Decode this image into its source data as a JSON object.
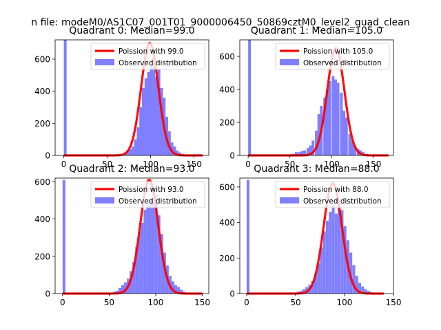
{
  "figure": {
    "suptitle": "n file: modeM0/AS1C07_001T01_9000006450_50869cztM0_level2_quad_clean"
  },
  "colors": {
    "observed": "#7f7fff",
    "poisson": "#ff0000",
    "axis": "#000000",
    "background": "#ffffff"
  },
  "chart_data": [
    {
      "type": "bar",
      "title": "Quadrant 0: Median=99.0",
      "xlim": [
        -10,
        167
      ],
      "ylim": [
        0,
        720
      ],
      "xticks": [
        0,
        50,
        100,
        150
      ],
      "xtick_labels": [
        "0",
        "50",
        "100",
        "150"
      ],
      "yticks": [
        0,
        200,
        400,
        600
      ],
      "ytick_labels": [
        "0",
        "200",
        "400",
        "600"
      ],
      "legend": {
        "position": "top-right",
        "entries": [
          "Poission with 99.0",
          "Observed distribution"
        ]
      },
      "median": 99.0,
      "bin_width": 3.2,
      "bins": [
        [
          0,
          720
        ],
        [
          57,
          2
        ],
        [
          63,
          4
        ],
        [
          66,
          8
        ],
        [
          69,
          15
        ],
        [
          72,
          28
        ],
        [
          75,
          38
        ],
        [
          78,
          55
        ],
        [
          81,
          100
        ],
        [
          84,
          175
        ],
        [
          87,
          300
        ],
        [
          90,
          420
        ],
        [
          93,
          480
        ],
        [
          96,
          520
        ],
        [
          99,
          560
        ],
        [
          102,
          610
        ],
        [
          105,
          490
        ],
        [
          108,
          540
        ],
        [
          111,
          420
        ],
        [
          114,
          360
        ],
        [
          117,
          240
        ],
        [
          120,
          150
        ],
        [
          123,
          80
        ],
        [
          126,
          55
        ],
        [
          129,
          30
        ],
        [
          132,
          18
        ],
        [
          135,
          10
        ],
        [
          138,
          5
        ]
      ],
      "poisson": {
        "lambda": 99.0,
        "peak": 700,
        "x_range": [
          0,
          160
        ]
      }
    },
    {
      "type": "bar",
      "title": "Quadrant 1: Median=105.0",
      "xlim": [
        -10,
        174
      ],
      "ylim": [
        0,
        700
      ],
      "xticks": [
        0,
        50,
        100,
        150
      ],
      "xtick_labels": [
        "0",
        "50",
        "100",
        "150"
      ],
      "yticks": [
        0,
        200,
        400,
        600
      ],
      "ytick_labels": [
        "0",
        "200",
        "400",
        "600"
      ],
      "legend": {
        "position": "top-right",
        "entries": [
          "Poission with 105.0",
          "Observed distribution"
        ]
      },
      "median": 105.0,
      "bin_width": 3.3,
      "bins": [
        [
          0,
          700
        ],
        [
          52,
          10
        ],
        [
          56,
          20
        ],
        [
          60,
          20
        ],
        [
          63,
          25
        ],
        [
          66,
          30
        ],
        [
          70,
          45
        ],
        [
          73,
          60
        ],
        [
          76,
          90
        ],
        [
          80,
          150
        ],
        [
          83,
          250
        ],
        [
          86,
          300
        ],
        [
          90,
          350
        ],
        [
          93,
          400
        ],
        [
          96,
          450
        ],
        [
          100,
          480
        ],
        [
          103,
          460
        ],
        [
          106,
          440
        ],
        [
          110,
          380
        ],
        [
          113,
          270
        ],
        [
          116,
          230
        ],
        [
          120,
          130
        ],
        [
          123,
          90
        ],
        [
          126,
          60
        ],
        [
          130,
          40
        ],
        [
          133,
          30
        ],
        [
          136,
          20
        ],
        [
          140,
          10
        ],
        [
          143,
          5
        ]
      ],
      "poisson": {
        "lambda": 105.0,
        "peak": 650,
        "x_range": [
          0,
          168
        ]
      }
    },
    {
      "type": "bar",
      "title": "Quadrant 2: Median=93.0",
      "xlim": [
        -8,
        157
      ],
      "ylim": [
        0,
        620
      ],
      "xticks": [
        0,
        50,
        100,
        150
      ],
      "xtick_labels": [
        "0",
        "50",
        "100",
        "150"
      ],
      "yticks": [
        0,
        200,
        400,
        600
      ],
      "ytick_labels": [
        "0",
        "200",
        "400",
        "600"
      ],
      "legend": {
        "position": "top-right",
        "entries": [
          "Poission with 93.0",
          "Observed distribution"
        ]
      },
      "median": 93.0,
      "bin_width": 3.0,
      "bins": [
        [
          0,
          610
        ],
        [
          51,
          5
        ],
        [
          54,
          10
        ],
        [
          57,
          15
        ],
        [
          60,
          30
        ],
        [
          63,
          45
        ],
        [
          66,
          60
        ],
        [
          69,
          80
        ],
        [
          72,
          120
        ],
        [
          75,
          170
        ],
        [
          78,
          250
        ],
        [
          81,
          330
        ],
        [
          84,
          380
        ],
        [
          87,
          450
        ],
        [
          90,
          470
        ],
        [
          93,
          510
        ],
        [
          96,
          490
        ],
        [
          99,
          530
        ],
        [
          102,
          420
        ],
        [
          105,
          320
        ],
        [
          108,
          220
        ],
        [
          111,
          150
        ],
        [
          114,
          95
        ],
        [
          117,
          65
        ],
        [
          120,
          45
        ],
        [
          123,
          35
        ],
        [
          126,
          20
        ],
        [
          129,
          10
        ],
        [
          132,
          5
        ]
      ],
      "poisson": {
        "lambda": 93.0,
        "peak": 610,
        "x_range": [
          0,
          150
        ]
      }
    },
    {
      "type": "bar",
      "title": "Quadrant 3: Median=88.0",
      "xlim": [
        -7,
        150
      ],
      "ylim": [
        0,
        650
      ],
      "xticks": [
        0,
        50,
        100,
        150
      ],
      "xtick_labels": [
        "0",
        "50",
        "100",
        "150"
      ],
      "yticks": [
        0,
        200,
        400,
        600
      ],
      "ytick_labels": [
        "0",
        "200",
        "400",
        "600"
      ],
      "legend": {
        "position": "top-right",
        "entries": [
          "Poission with 88.0",
          "Observed distribution"
        ]
      },
      "median": 88.0,
      "bin_width": 2.9,
      "bins": [
        [
          0,
          640
        ],
        [
          48,
          5
        ],
        [
          51,
          10
        ],
        [
          54,
          15
        ],
        [
          57,
          25
        ],
        [
          60,
          35
        ],
        [
          63,
          50
        ],
        [
          66,
          70
        ],
        [
          69,
          110
        ],
        [
          72,
          170
        ],
        [
          75,
          260
        ],
        [
          78,
          350
        ],
        [
          81,
          410
        ],
        [
          84,
          460
        ],
        [
          87,
          500
        ],
        [
          90,
          450
        ],
        [
          93,
          510
        ],
        [
          96,
          470
        ],
        [
          99,
          380
        ],
        [
          102,
          300
        ],
        [
          105,
          230
        ],
        [
          108,
          160
        ],
        [
          111,
          100
        ],
        [
          114,
          60
        ],
        [
          117,
          40
        ],
        [
          120,
          25
        ],
        [
          123,
          15
        ],
        [
          126,
          8
        ]
      ],
      "poisson": {
        "lambda": 88.0,
        "peak": 620,
        "x_range": [
          0,
          140
        ]
      }
    }
  ]
}
